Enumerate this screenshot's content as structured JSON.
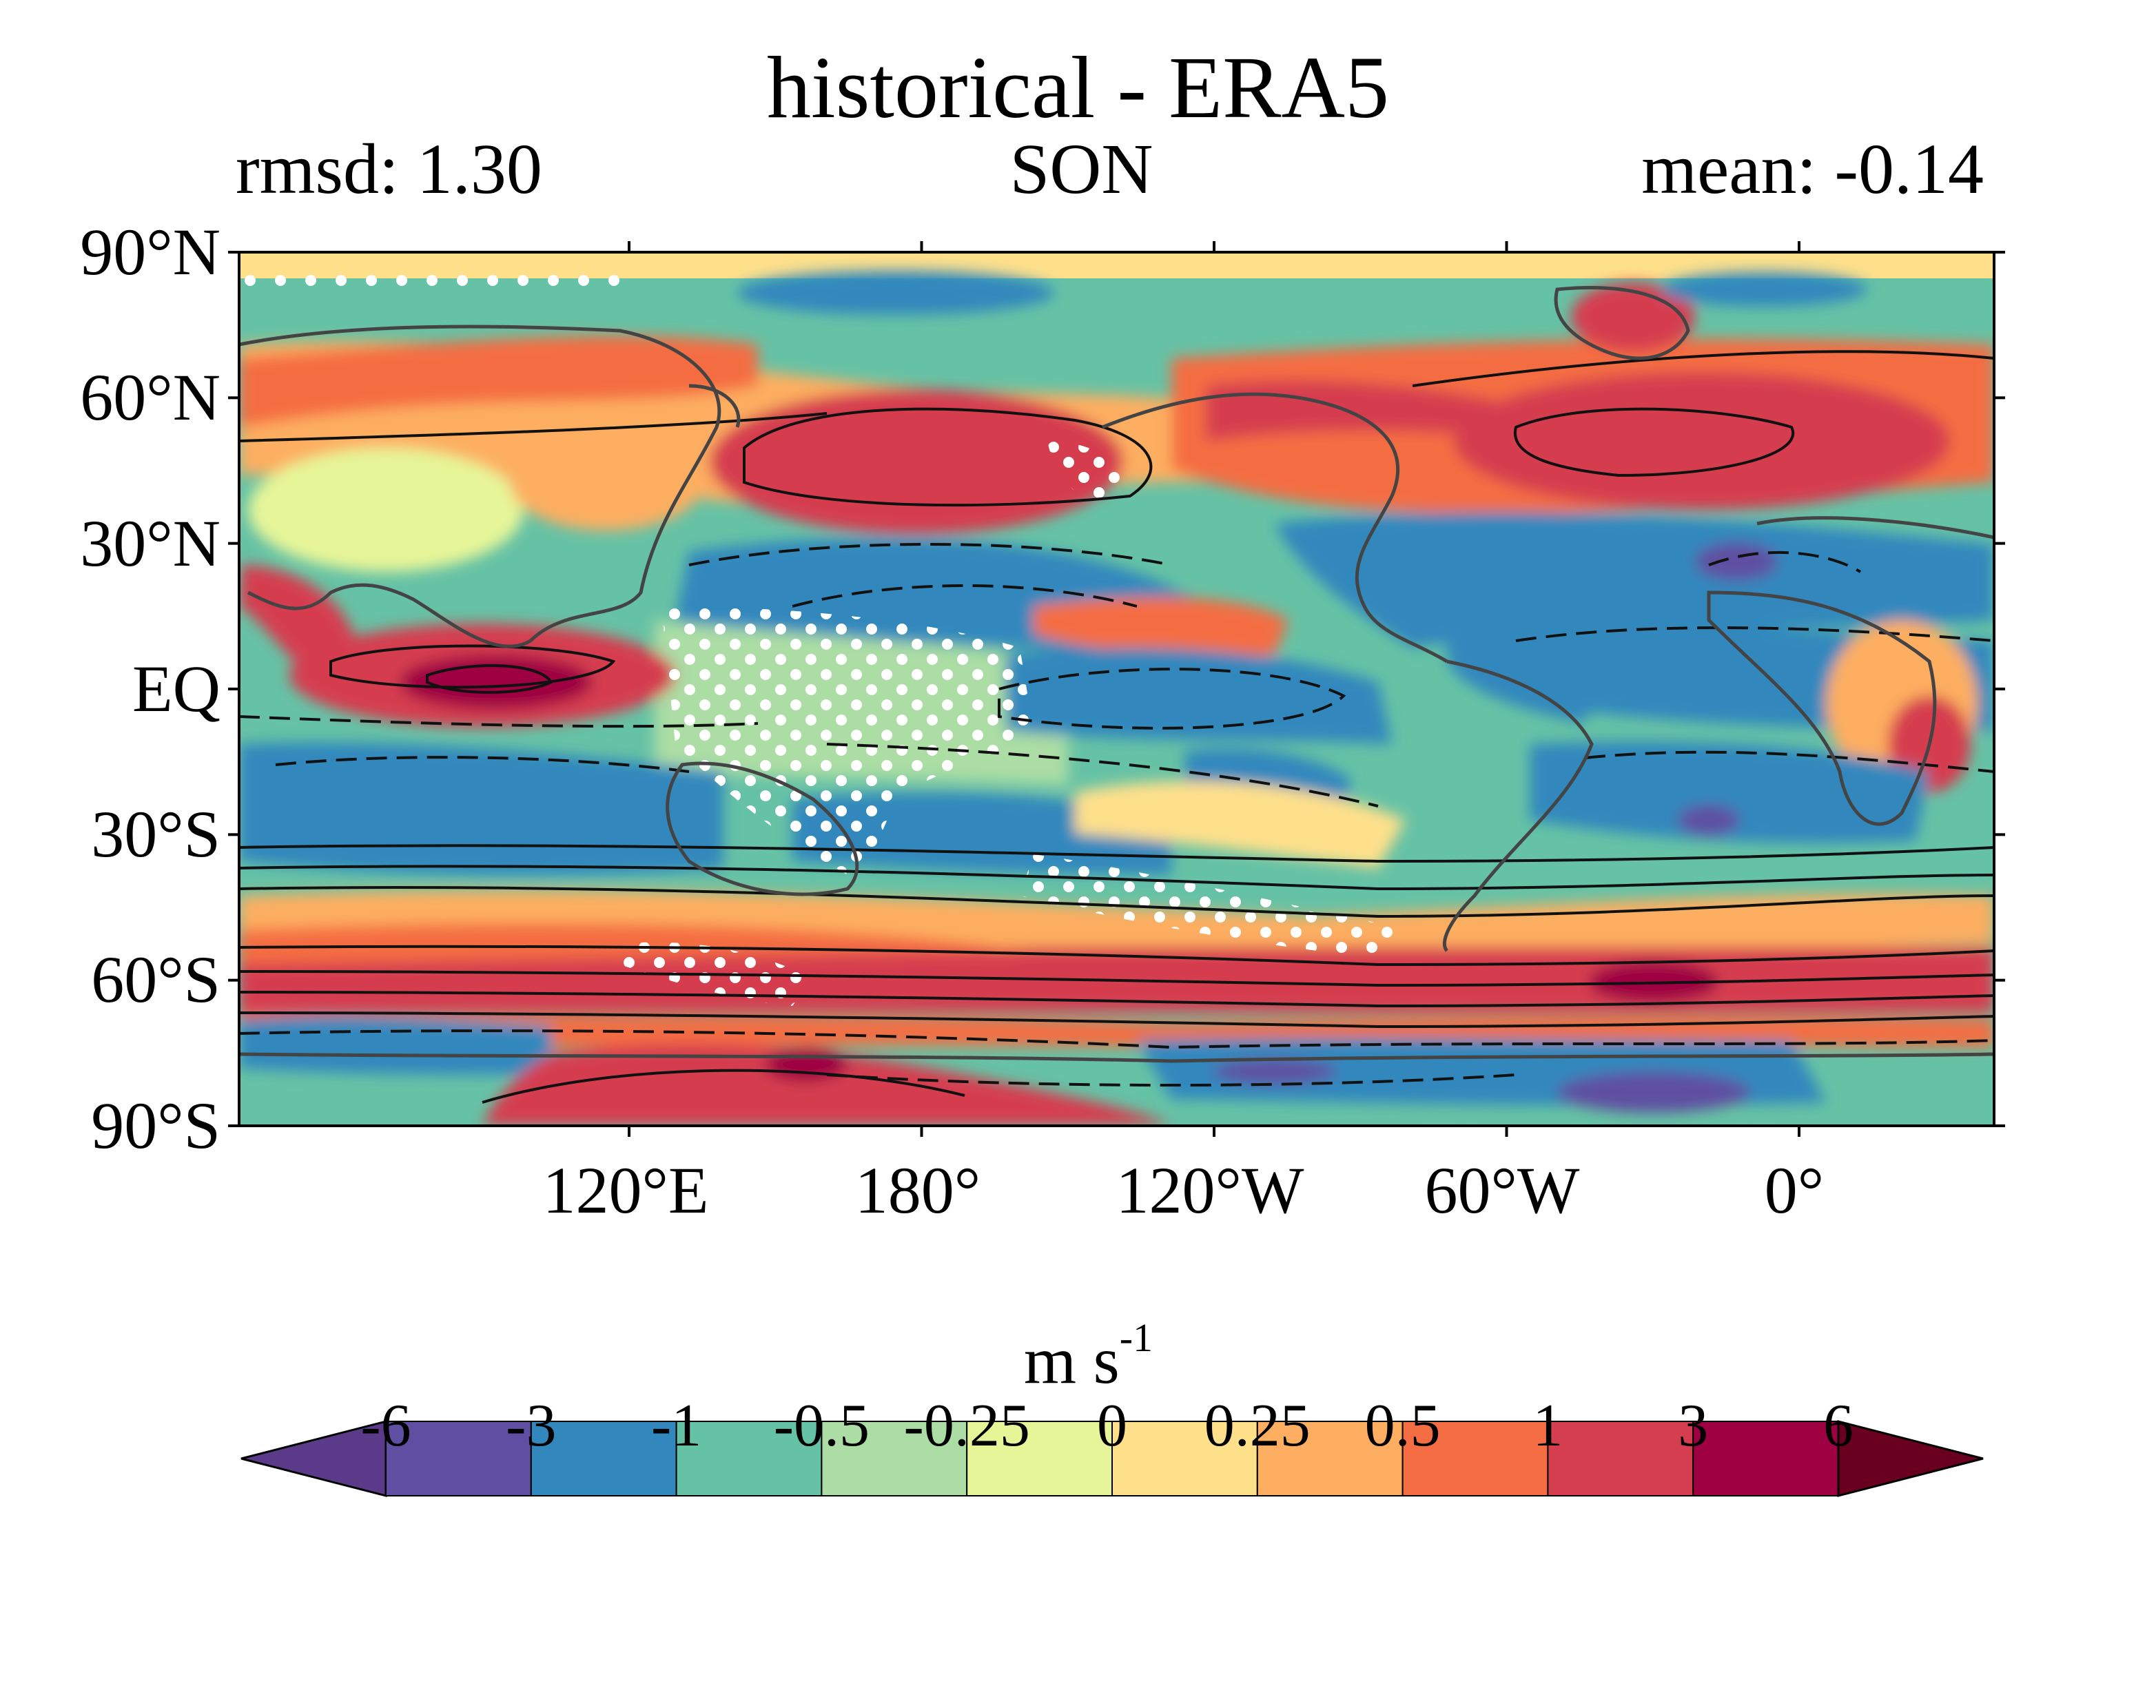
{
  "title": "historical - ERA5",
  "rmsd_label": "rmsd: 1.30",
  "season": "SON",
  "mean_label": "mean: -0.14",
  "map": {
    "lat_ticks": [
      "90°N",
      "60°N",
      "30°N",
      "EQ",
      "30°S",
      "60°S",
      "90°S"
    ],
    "lon_ticks": [
      "120°E",
      "180°",
      "120°W",
      "60°W",
      "0°"
    ],
    "lon_tick_values": [
      120,
      180,
      240,
      300,
      360
    ],
    "lon_start": 40,
    "lon_end": 400,
    "field": "difference (historical minus ERA5), filled contours, solid/dashed contour overlay, white stippling",
    "regions": [
      {
        "name": "north-pacific-positive",
        "level": 3
      },
      {
        "name": "north-atlantic-positive",
        "level": 3
      },
      {
        "name": "southern-ocean-positive",
        "level": 3
      },
      {
        "name": "indian-ocean-equatorial-positive",
        "level": 6
      },
      {
        "name": "tropical-pacific-negative",
        "level": -1
      },
      {
        "name": "tropical-atlantic-negative",
        "level": -1
      },
      {
        "name": "antarctic-negative",
        "level": -3
      }
    ]
  },
  "colorbar": {
    "units_main": "m s",
    "units_exp": "-1",
    "tick_labels": [
      "-6",
      "-3",
      "-1",
      "-0.5",
      "-0.25",
      "0",
      "0.25",
      "0.5",
      "1",
      "3",
      "6"
    ],
    "colors": [
      "#5c3a8a",
      "#5e4fa2",
      "#3288bd",
      "#66c2a5",
      "#abdda4",
      "#e6f598",
      "#fee08b",
      "#fdae61",
      "#f46d43",
      "#d53e4f",
      "#9e0142",
      "#6a0020"
    ]
  }
}
